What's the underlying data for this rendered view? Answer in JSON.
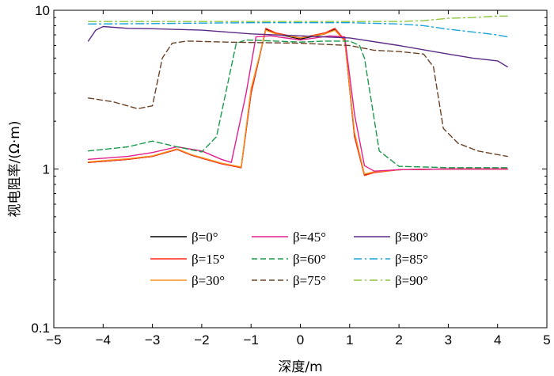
{
  "chart_data": {
    "type": "line",
    "title": "",
    "xlabel": "深度/m",
    "ylabel": "视电阻率/(Ω·m)",
    "xlim": [
      -5,
      5
    ],
    "ylim": [
      0.1,
      10
    ],
    "yscale": "log",
    "xticks": [
      -5,
      -4,
      -3,
      -2,
      -1,
      0,
      1,
      2,
      3,
      4,
      5
    ],
    "xtick_labels": [
      "−5",
      "−4",
      "−3",
      "−2",
      "−1",
      "0",
      "1",
      "2",
      "3",
      "4",
      "5"
    ],
    "yticks": [
      0.1,
      1,
      10
    ],
    "ytick_labels": [
      "0.1",
      "1",
      "10"
    ],
    "grid": false,
    "legend": {
      "placement": "bottom-center",
      "columns": 3,
      "entries": [
        "β=0°",
        "β=15°",
        "β=30°",
        "β=45°",
        "β=60°",
        "β=75°",
        "β=80°",
        "β=85°",
        "β=90°"
      ]
    },
    "series": [
      {
        "name": "β=0°",
        "color": "#000000",
        "dash": "solid",
        "x": [
          -4.3,
          -3.5,
          -3.0,
          -2.5,
          -2.2,
          -1.6,
          -1.2,
          -1.0,
          -0.7,
          -0.5,
          0.0,
          0.5,
          0.7,
          0.9,
          1.1,
          1.3,
          1.5,
          2.0,
          3.0,
          4.2
        ],
        "y": [
          1.1,
          1.15,
          1.2,
          1.33,
          1.22,
          1.08,
          1.02,
          3.0,
          7.6,
          7.1,
          6.6,
          7.1,
          7.6,
          6.5,
          1.6,
          0.92,
          0.96,
          0.99,
          1.0,
          1.0
        ]
      },
      {
        "name": "β=15°",
        "color": "#ff2a1a",
        "dash": "solid",
        "x": [
          -4.3,
          -3.5,
          -3.0,
          -2.5,
          -2.2,
          -1.6,
          -1.2,
          -1.0,
          -0.7,
          -0.5,
          0.0,
          0.5,
          0.7,
          0.9,
          1.1,
          1.3,
          1.5,
          2.0,
          3.0,
          4.2
        ],
        "y": [
          1.1,
          1.15,
          1.2,
          1.33,
          1.22,
          1.08,
          1.02,
          3.0,
          7.7,
          7.2,
          6.7,
          7.2,
          7.7,
          6.5,
          1.6,
          0.91,
          0.95,
          0.99,
          1.0,
          1.0
        ]
      },
      {
        "name": "β=30°",
        "color": "#f7941d",
        "dash": "solid",
        "x": [
          -4.3,
          -3.5,
          -3.0,
          -2.5,
          -2.2,
          -1.6,
          -1.2,
          -1.0,
          -0.7,
          -0.5,
          0.0,
          0.5,
          0.7,
          0.9,
          1.1,
          1.3,
          1.5,
          2.0,
          3.0,
          4.2
        ],
        "y": [
          1.11,
          1.16,
          1.21,
          1.34,
          1.23,
          1.09,
          1.03,
          3.2,
          7.5,
          7.1,
          6.7,
          7.1,
          7.5,
          6.4,
          1.7,
          0.93,
          0.96,
          0.99,
          1.0,
          1.0
        ]
      },
      {
        "name": "β=45°",
        "color": "#e0208f",
        "dash": "solid",
        "x": [
          -4.3,
          -3.5,
          -3.0,
          -2.5,
          -2.0,
          -1.6,
          -1.4,
          -1.1,
          -0.9,
          -0.6,
          0.0,
          0.6,
          0.9,
          1.1,
          1.3,
          1.5,
          2.0,
          3.0,
          4.2
        ],
        "y": [
          1.15,
          1.2,
          1.27,
          1.38,
          1.3,
          1.15,
          1.1,
          3.0,
          6.8,
          6.9,
          6.5,
          6.9,
          6.8,
          2.2,
          1.05,
          0.97,
          0.99,
          1.0,
          1.0
        ]
      },
      {
        "name": "β=60°",
        "color": "#1a9a4a",
        "dash": "dash",
        "x": [
          -4.3,
          -3.5,
          -3.0,
          -2.5,
          -2.0,
          -1.7,
          -1.3,
          -1.1,
          -0.5,
          0.0,
          0.5,
          1.0,
          1.2,
          1.3,
          1.6,
          2.0,
          3.0,
          4.2
        ],
        "y": [
          1.3,
          1.38,
          1.5,
          1.38,
          1.28,
          1.6,
          6.2,
          6.5,
          6.4,
          6.3,
          6.4,
          6.4,
          6.0,
          5.0,
          1.3,
          1.04,
          1.02,
          1.02
        ]
      },
      {
        "name": "β=75°",
        "color": "#6b4226",
        "dash": "dash",
        "x": [
          -4.3,
          -3.8,
          -3.3,
          -3.0,
          -2.8,
          -2.6,
          -2.3,
          -1.5,
          0.0,
          1.0,
          1.5,
          2.0,
          2.5,
          2.7,
          2.9,
          3.2,
          3.6,
          4.2
        ],
        "y": [
          2.8,
          2.65,
          2.4,
          2.5,
          5.0,
          6.2,
          6.4,
          6.3,
          6.2,
          6.0,
          5.6,
          5.5,
          5.3,
          4.4,
          1.8,
          1.45,
          1.3,
          1.2
        ]
      },
      {
        "name": "β=80°",
        "color": "#5b2a86",
        "dash": "solid",
        "x": [
          -4.3,
          -4.15,
          -4.0,
          -3.5,
          -3.0,
          -2.0,
          -1.0,
          0.0,
          1.0,
          2.0,
          3.0,
          3.5,
          4.0,
          4.2
        ],
        "y": [
          6.4,
          7.5,
          7.9,
          7.7,
          7.65,
          7.5,
          7.1,
          6.9,
          6.7,
          6.0,
          5.3,
          5.0,
          4.8,
          4.4
        ]
      },
      {
        "name": "β=85°",
        "color": "#1aa3d9",
        "dash": "dashdot",
        "x": [
          -4.3,
          -3.0,
          -2.0,
          -1.0,
          0.0,
          1.0,
          2.0,
          2.5,
          3.0,
          3.5,
          4.0,
          4.2
        ],
        "y": [
          8.2,
          8.25,
          8.3,
          8.35,
          8.35,
          8.35,
          8.2,
          8.0,
          7.6,
          7.3,
          7.0,
          6.8
        ]
      },
      {
        "name": "β=90°",
        "color": "#8dc63f",
        "dash": "dashdot",
        "x": [
          -4.3,
          -3.0,
          -2.0,
          -1.0,
          0.0,
          1.0,
          2.0,
          2.5,
          3.0,
          3.5,
          4.0,
          4.2
        ],
        "y": [
          8.5,
          8.5,
          8.5,
          8.5,
          8.5,
          8.5,
          8.5,
          8.6,
          8.9,
          9.0,
          9.2,
          9.2
        ]
      }
    ]
  }
}
